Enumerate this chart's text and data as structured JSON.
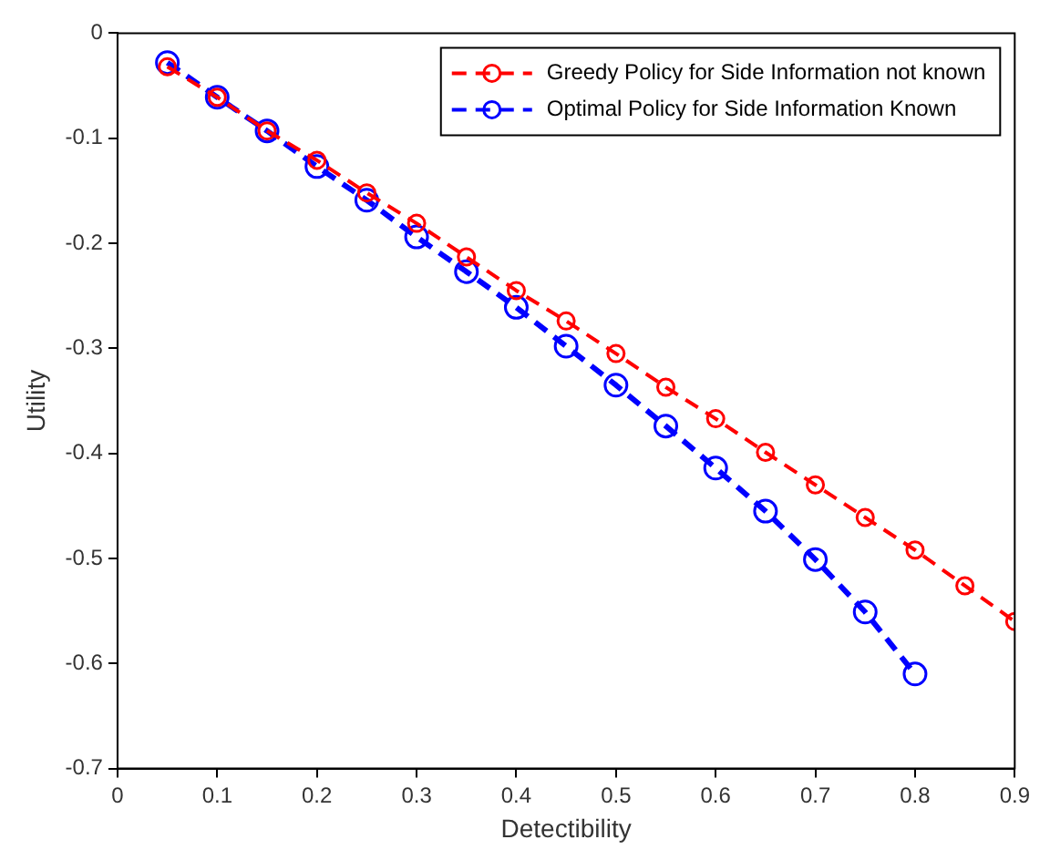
{
  "chart_data": {
    "type": "line",
    "xlabel": "Detectibility",
    "ylabel": "Utility",
    "x": [
      0.05,
      0.1,
      0.15,
      0.2,
      0.25,
      0.3,
      0.35,
      0.4,
      0.45,
      0.5,
      0.55,
      0.6,
      0.65,
      0.7,
      0.75,
      0.8,
      0.85,
      0.9
    ],
    "series": [
      {
        "name": "Greedy Policy for Side Information not known",
        "color": "#ff0000",
        "values": [
          -0.032,
          -0.061,
          -0.093,
          -0.121,
          -0.152,
          -0.181,
          -0.213,
          -0.245,
          -0.274,
          -0.305,
          -0.337,
          -0.367,
          -0.399,
          -0.43,
          -0.461,
          -0.492,
          -0.526,
          -0.56
        ]
      },
      {
        "name": "Optimal Policy for Side Information Known",
        "color": "#0000ff",
        "values": [
          -0.028,
          -0.061,
          -0.093,
          -0.127,
          -0.159,
          -0.194,
          -0.227,
          -0.261,
          -0.298,
          -0.335,
          -0.374,
          -0.414,
          -0.455,
          -0.501,
          -0.551,
          -0.61,
          null,
          null
        ]
      }
    ],
    "xlim": [
      0,
      0.9
    ],
    "xticks": [
      0,
      0.1,
      0.2,
      0.3,
      0.4,
      0.5,
      0.6,
      0.7,
      0.8,
      0.9
    ],
    "ylim": [
      -0.7,
      0
    ],
    "yticks": [
      -0.7,
      -0.6,
      -0.5,
      -0.4,
      -0.3,
      -0.2,
      -0.1,
      0
    ],
    "grid": false,
    "legend": "top right",
    "marker": "circle",
    "line_style": "dashed"
  }
}
